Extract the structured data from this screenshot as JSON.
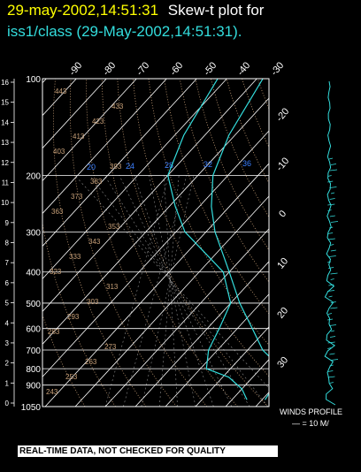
{
  "header": {
    "timestamp": "29-may-2002,14:51:31",
    "plot_label": "Skew-t plot for",
    "source": "iss1/class (29-May-2002,14:51:31)."
  },
  "winds": {
    "label": "WINDS PROFILE",
    "scale": "— = 10 M/"
  },
  "banner": "REAL-TIME DATA, NOT CHECKED FOR QUALITY",
  "colors": {
    "title": "#ffff00",
    "sounding": "#33dddd",
    "isotherm": "#ffffff",
    "adiabat": "#c8a078",
    "grid": "#c8c8c8"
  },
  "chart_data": {
    "type": "line",
    "pressure_levels": [
      100,
      200,
      300,
      400,
      500,
      600,
      700,
      800,
      900,
      1050
    ],
    "height_km_ticks": [
      "16",
      "15",
      "14",
      "13",
      "12",
      "11",
      "10",
      "9",
      "8",
      "7",
      "6",
      "5",
      "4",
      "3",
      "2",
      "1",
      "0"
    ],
    "isotherm_labels": [
      "-90",
      "-80",
      "-70",
      "-60",
      "-50",
      "-40",
      "-30",
      "-20",
      "-10",
      "0",
      "10",
      "20",
      "30"
    ],
    "mixing_ratio_labels": [
      "20",
      "24",
      "28",
      "32",
      "36"
    ],
    "adiabat_labels": [
      "243",
      "253",
      "263",
      "273",
      "283",
      "293",
      "303",
      "313",
      "323",
      "333",
      "343",
      "353",
      "363",
      "373",
      "383",
      "393",
      "403",
      "413",
      "423",
      "433",
      "443"
    ],
    "series": [
      {
        "name": "temperature",
        "points": [
          [
            1000,
            31
          ],
          [
            925,
            30
          ],
          [
            850,
            32
          ],
          [
            800,
            27
          ],
          [
            700,
            15
          ],
          [
            600,
            5
          ],
          [
            500,
            -7
          ],
          [
            400,
            -20
          ],
          [
            300,
            -37
          ],
          [
            250,
            -46
          ],
          [
            200,
            -55
          ],
          [
            150,
            -62
          ],
          [
            100,
            -68
          ]
        ]
      },
      {
        "name": "dewpoint",
        "points": [
          [
            1000,
            25
          ],
          [
            925,
            20
          ],
          [
            850,
            12
          ],
          [
            800,
            2
          ],
          [
            700,
            -3
          ],
          [
            600,
            -6
          ],
          [
            500,
            -10
          ],
          [
            400,
            -22
          ],
          [
            300,
            -47
          ],
          [
            250,
            -58
          ],
          [
            200,
            -70
          ],
          [
            150,
            -77
          ],
          [
            100,
            -83
          ]
        ]
      }
    ],
    "x_range_c": [
      -40,
      40
    ],
    "y_range_hpa": [
      1050,
      100
    ]
  }
}
